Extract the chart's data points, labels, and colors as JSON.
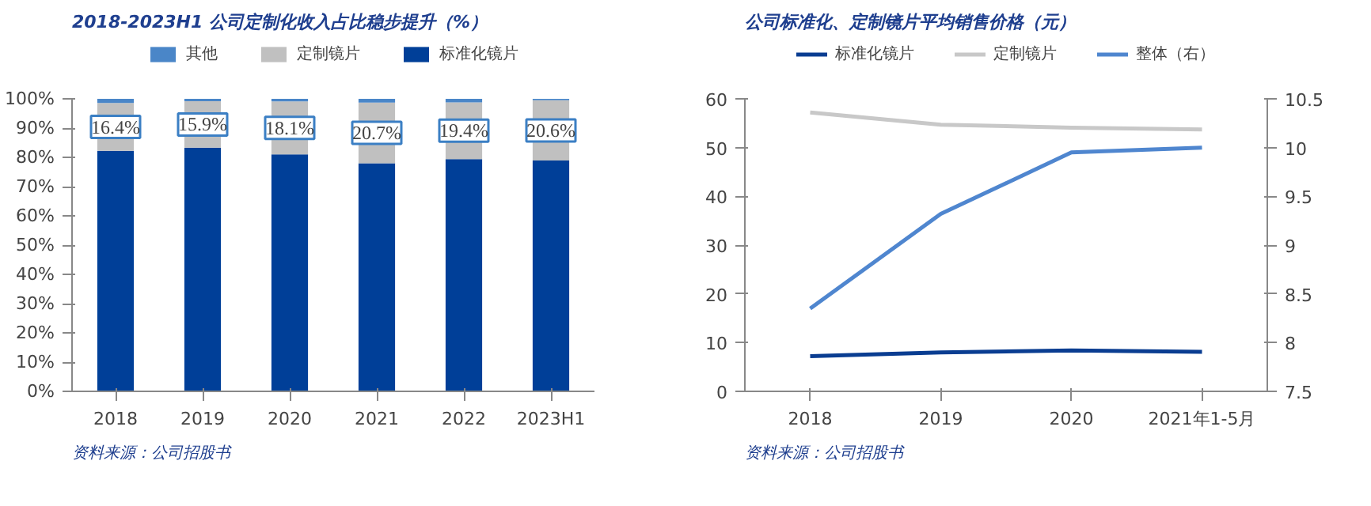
{
  "chart_data": [
    {
      "type": "bar",
      "title": "2018-2023H1 公司定制化收入占比稳步提升（%）",
      "categories": [
        "2018",
        "2019",
        "2020",
        "2021",
        "2022",
        "2023H1"
      ],
      "stacked": true,
      "series": [
        {
          "name": "标准化镜片",
          "color": "#003f98",
          "values": [
            82.2,
            83.3,
            81.0,
            78.0,
            79.4,
            78.9
          ]
        },
        {
          "name": "定制镜片",
          "color": "#c0c0c0",
          "values": [
            16.4,
            15.9,
            18.1,
            20.7,
            19.4,
            20.6
          ],
          "value_labels": [
            "16.4%",
            "15.9%",
            "18.1%",
            "20.7%",
            "19.4%",
            "20.6%"
          ]
        },
        {
          "name": "其他",
          "color": "#4a86c8",
          "values": [
            1.4,
            0.8,
            0.9,
            1.3,
            1.2,
            0.5
          ]
        }
      ],
      "ylim": [
        0,
        100
      ],
      "yticks": [
        {
          "value": 0,
          "label": "0%"
        },
        {
          "value": 10,
          "label": "10%"
        },
        {
          "value": 20,
          "label": "20%"
        },
        {
          "value": 30,
          "label": "30%"
        },
        {
          "value": 40,
          "label": "40%"
        },
        {
          "value": 50,
          "label": "50%"
        },
        {
          "value": 60,
          "label": "60%"
        },
        {
          "value": 70,
          "label": "70%"
        },
        {
          "value": 80,
          "label": "80%"
        },
        {
          "value": 90,
          "label": "90%"
        },
        {
          "value": 100,
          "label": "100%"
        }
      ],
      "legend": "top",
      "grid": false,
      "annotations": [
        "资料来源：公司招股书"
      ]
    },
    {
      "type": "line",
      "title": "公司标准化、定制镜片平均销售价格（元）",
      "categories": [
        "2018",
        "2019",
        "2020",
        "2021年1-5月"
      ],
      "series": [
        {
          "name": "标准化镜片",
          "color": "#0a3d91",
          "values": [
            7.2,
            8.0,
            8.4,
            8.1
          ]
        },
        {
          "name": "定制镜片",
          "color": "#c8c8c8",
          "values": [
            57.2,
            54.7,
            54.1,
            53.7
          ]
        },
        {
          "name": "整体（右）",
          "color": "#4f86cf",
          "values": [
            8.35,
            9.32,
            9.95,
            10.0
          ],
          "axis": "y2"
        }
      ],
      "ylim": [
        0,
        60
      ],
      "yticks": [
        0,
        10,
        20,
        30,
        40,
        50,
        60
      ],
      "y2lim": [
        7.5,
        10.5
      ],
      "y2ticks": [
        7.5,
        8,
        8.5,
        9,
        9.5,
        10,
        10.5
      ],
      "legend": "top",
      "grid": false,
      "marker": "none",
      "line_style": "solid",
      "annotations": [
        "资料来源：公司招股书"
      ]
    }
  ]
}
